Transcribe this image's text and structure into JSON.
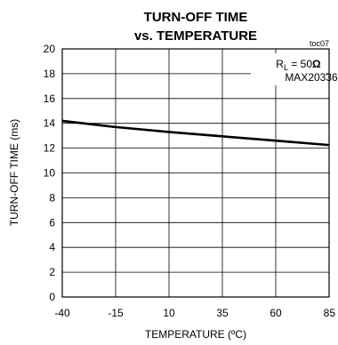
{
  "chart_data": {
    "type": "line",
    "title_line1": "TURN-OFF TIME",
    "title_line2": "vs. TEMPERATURE",
    "figure_id": "toc07",
    "xlabel": "TEMPERATURE (ºC)",
    "ylabel": "TURN-OFF TIME (ms)",
    "x_ticks": [
      -40,
      -15,
      10,
      35,
      60,
      85
    ],
    "y_ticks": [
      0,
      2,
      4,
      6,
      8,
      10,
      12,
      14,
      16,
      18,
      20
    ],
    "xlim": [
      -40,
      85
    ],
    "ylim": [
      0,
      20
    ],
    "grid": true,
    "annotation": {
      "rl_label": "R",
      "rl_subscript": "L",
      "rl_value": " = 50",
      "rl_unit": "Ω",
      "part": "MAX20336"
    },
    "series": [
      {
        "x": [
          -40,
          -15,
          10,
          35,
          60,
          85
        ],
        "y": [
          14.2,
          13.7,
          13.3,
          12.95,
          12.6,
          12.25
        ]
      }
    ],
    "line_color": "#000000"
  }
}
